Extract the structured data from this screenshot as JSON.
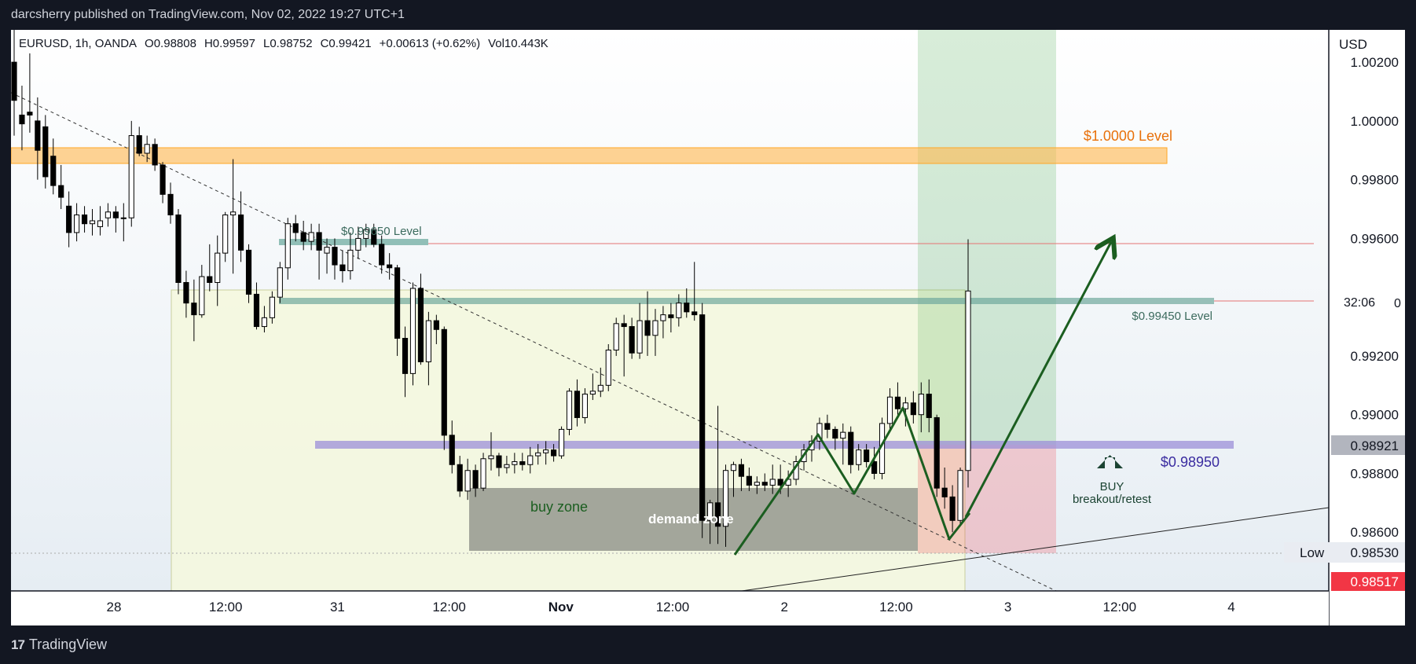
{
  "header": {
    "publisher": "darcsherry published on TradingView.com, Nov 02, 2022 19:27 UTC+1"
  },
  "footer": {
    "brand": "TradingView"
  },
  "legend": {
    "symbol": "EURUSD, 1h, OANDA",
    "open": "O0.98808",
    "high": "H0.99597",
    "low": "L0.98752",
    "close": "C0.99421",
    "change": "+0.00613 (+0.62%)",
    "volume": "Vol10.443K"
  },
  "price_axis": {
    "currency": "USD",
    "ticks": [
      "1.00200",
      "1.00000",
      "0.99800",
      "0.99600",
      "0.99200",
      "0.99000",
      "0.98800",
      "0.98600"
    ],
    "countdown": "32:06",
    "countdown_suffix": "0",
    "last_price": "0.98921",
    "low_label": "Low",
    "low_value": "0.98530",
    "current_price": "0.98517"
  },
  "time_axis": {
    "ticks": [
      "28",
      "12:00",
      "31",
      "12:00",
      "Nov",
      "12:00",
      "2",
      "12:00",
      "3",
      "12:00",
      "4"
    ]
  },
  "annotations": {
    "level_1": "$1.0000 Level",
    "level_2": "$0.99650 Level",
    "level_3": "$0.99450 Level",
    "level_4": "$0.98950",
    "buy_zone": "buy zone",
    "demand_zone": "demand zone",
    "buy_title": "BUY",
    "buy_sub": "breakout/retest"
  },
  "colors": {
    "up_body": "#ffffff",
    "down_body": "#000000",
    "wick": "#000000",
    "level_orange": "#ff9800",
    "level_teal": "#5b9c8f",
    "level_purple": "#9c8fd8",
    "profit_zone": "#4caf50",
    "stop_zone": "#f23645",
    "arrow_green": "#1b5e20",
    "current_price_tag": "#f23645"
  },
  "chart_data": {
    "type": "candlestick",
    "symbol": "EURUSD",
    "interval": "1h",
    "ylim": [
      0.984,
      1.0031
    ],
    "x_tick_labels": [
      "28",
      "12:00",
      "31",
      "12:00",
      "Nov",
      "12:00",
      "2",
      "12:00",
      "3",
      "12:00",
      "4"
    ],
    "candles": [
      {
        "o": 1.002,
        "h": 1.0032,
        "l": 0.9995,
        "c": 1.0007
      },
      {
        "o": 1.0002,
        "h": 1.0012,
        "l": 0.999,
        "c": 0.9999
      },
      {
        "o": 1.0003,
        "h": 1.0023,
        "l": 0.9996,
        "c": 1.0002
      },
      {
        "o": 1.0,
        "h": 1.0008,
        "l": 0.998,
        "c": 0.999
      },
      {
        "o": 0.9998,
        "h": 1.0002,
        "l": 0.9977,
        "c": 0.9981
      },
      {
        "o": 0.9988,
        "h": 0.9994,
        "l": 0.9975,
        "c": 0.9978
      },
      {
        "o": 0.9978,
        "h": 0.9985,
        "l": 0.997,
        "c": 0.9974
      },
      {
        "o": 0.9971,
        "h": 0.9976,
        "l": 0.9957,
        "c": 0.9962
      },
      {
        "o": 0.9962,
        "h": 0.9972,
        "l": 0.9959,
        "c": 0.9968
      },
      {
        "o": 0.9968,
        "h": 0.9971,
        "l": 0.9962,
        "c": 0.9965
      },
      {
        "o": 0.9965,
        "h": 0.997,
        "l": 0.9961,
        "c": 0.9966
      },
      {
        "o": 0.9964,
        "h": 0.9971,
        "l": 0.9961,
        "c": 0.9966
      },
      {
        "o": 0.9967,
        "h": 0.9972,
        "l": 0.9964,
        "c": 0.9969
      },
      {
        "o": 0.9969,
        "h": 0.9971,
        "l": 0.9962,
        "c": 0.9967
      },
      {
        "o": 0.9967,
        "h": 0.9972,
        "l": 0.9959,
        "c": 0.9967
      },
      {
        "o": 0.9967,
        "h": 1.0,
        "l": 0.9964,
        "c": 0.9995
      },
      {
        "o": 0.9995,
        "h": 0.9998,
        "l": 0.9988,
        "c": 0.9989
      },
      {
        "o": 0.9989,
        "h": 0.9995,
        "l": 0.9986,
        "c": 0.9992
      },
      {
        "o": 0.9992,
        "h": 0.9994,
        "l": 0.9983,
        "c": 0.9985
      },
      {
        "o": 0.9985,
        "h": 0.9986,
        "l": 0.9972,
        "c": 0.9975
      },
      {
        "o": 0.9975,
        "h": 0.9979,
        "l": 0.9965,
        "c": 0.9968
      },
      {
        "o": 0.9968,
        "h": 0.997,
        "l": 0.9941,
        "c": 0.9945
      },
      {
        "o": 0.9945,
        "h": 0.9949,
        "l": 0.9933,
        "c": 0.9938
      },
      {
        "o": 0.9938,
        "h": 0.9946,
        "l": 0.9925,
        "c": 0.9934
      },
      {
        "o": 0.9934,
        "h": 0.9951,
        "l": 0.9933,
        "c": 0.9947
      },
      {
        "o": 0.9947,
        "h": 0.9958,
        "l": 0.9942,
        "c": 0.9945
      },
      {
        "o": 0.9945,
        "h": 0.9961,
        "l": 0.9937,
        "c": 0.9955
      },
      {
        "o": 0.9955,
        "h": 0.9969,
        "l": 0.9952,
        "c": 0.9968
      },
      {
        "o": 0.9968,
        "h": 0.9987,
        "l": 0.9948,
        "c": 0.9969
      },
      {
        "o": 0.9968,
        "h": 0.9976,
        "l": 0.9952,
        "c": 0.9956
      },
      {
        "o": 0.9956,
        "h": 0.9958,
        "l": 0.9938,
        "c": 0.9941
      },
      {
        "o": 0.9941,
        "h": 0.9945,
        "l": 0.9929,
        "c": 0.993
      },
      {
        "o": 0.993,
        "h": 0.9937,
        "l": 0.9928,
        "c": 0.9933
      },
      {
        "o": 0.9933,
        "h": 0.9942,
        "l": 0.9931,
        "c": 0.994
      },
      {
        "o": 0.994,
        "h": 0.9952,
        "l": 0.9938,
        "c": 0.995
      },
      {
        "o": 0.995,
        "h": 0.9967,
        "l": 0.9946,
        "c": 0.9965
      },
      {
        "o": 0.9965,
        "h": 0.9968,
        "l": 0.9959,
        "c": 0.9962
      },
      {
        "o": 0.9962,
        "h": 0.9966,
        "l": 0.9956,
        "c": 0.9959
      },
      {
        "o": 0.9959,
        "h": 0.9965,
        "l": 0.9956,
        "c": 0.9962
      },
      {
        "o": 0.9962,
        "h": 0.9965,
        "l": 0.9946,
        "c": 0.9956
      },
      {
        "o": 0.9955,
        "h": 0.996,
        "l": 0.9948,
        "c": 0.9957
      },
      {
        "o": 0.9957,
        "h": 0.996,
        "l": 0.9946,
        "c": 0.9951
      },
      {
        "o": 0.9951,
        "h": 0.9956,
        "l": 0.9945,
        "c": 0.9949
      },
      {
        "o": 0.9949,
        "h": 0.9962,
        "l": 0.9946,
        "c": 0.9956
      },
      {
        "o": 0.9956,
        "h": 0.9964,
        "l": 0.9953,
        "c": 0.996
      },
      {
        "o": 0.996,
        "h": 0.9965,
        "l": 0.9957,
        "c": 0.9963
      },
      {
        "o": 0.9963,
        "h": 0.9965,
        "l": 0.9957,
        "c": 0.9958
      },
      {
        "o": 0.9958,
        "h": 0.9961,
        "l": 0.9948,
        "c": 0.9951
      },
      {
        "o": 0.9951,
        "h": 0.9955,
        "l": 0.9946,
        "c": 0.995
      },
      {
        "o": 0.995,
        "h": 0.9951,
        "l": 0.992,
        "c": 0.9926
      },
      {
        "o": 0.9926,
        "h": 0.993,
        "l": 0.9906,
        "c": 0.9914
      },
      {
        "o": 0.9914,
        "h": 0.9945,
        "l": 0.991,
        "c": 0.9943
      },
      {
        "o": 0.9943,
        "h": 0.9948,
        "l": 0.9917,
        "c": 0.9918
      },
      {
        "o": 0.9918,
        "h": 0.9935,
        "l": 0.991,
        "c": 0.9932
      },
      {
        "o": 0.9932,
        "h": 0.9934,
        "l": 0.9924,
        "c": 0.9929
      },
      {
        "o": 0.9929,
        "h": 0.993,
        "l": 0.9888,
        "c": 0.9893
      },
      {
        "o": 0.9893,
        "h": 0.9898,
        "l": 0.988,
        "c": 0.9883
      },
      {
        "o": 0.9883,
        "h": 0.9886,
        "l": 0.9872,
        "c": 0.9874
      },
      {
        "o": 0.9874,
        "h": 0.9885,
        "l": 0.9871,
        "c": 0.9881
      },
      {
        "o": 0.9881,
        "h": 0.9883,
        "l": 0.9872,
        "c": 0.9875
      },
      {
        "o": 0.9875,
        "h": 0.9887,
        "l": 0.9874,
        "c": 0.9885
      },
      {
        "o": 0.9885,
        "h": 0.9894,
        "l": 0.9881,
        "c": 0.9886
      },
      {
        "o": 0.9886,
        "h": 0.9887,
        "l": 0.9879,
        "c": 0.9882
      },
      {
        "o": 0.9882,
        "h": 0.9886,
        "l": 0.988,
        "c": 0.9883
      },
      {
        "o": 0.9883,
        "h": 0.9887,
        "l": 0.988,
        "c": 0.9884
      },
      {
        "o": 0.9884,
        "h": 0.9887,
        "l": 0.9881,
        "c": 0.9883
      },
      {
        "o": 0.9883,
        "h": 0.9889,
        "l": 0.988,
        "c": 0.9886
      },
      {
        "o": 0.9886,
        "h": 0.989,
        "l": 0.9883,
        "c": 0.9887
      },
      {
        "o": 0.9887,
        "h": 0.9891,
        "l": 0.9883,
        "c": 0.9888
      },
      {
        "o": 0.9888,
        "h": 0.989,
        "l": 0.9884,
        "c": 0.9886
      },
      {
        "o": 0.9886,
        "h": 0.9896,
        "l": 0.9885,
        "c": 0.9895
      },
      {
        "o": 0.9895,
        "h": 0.9909,
        "l": 0.9893,
        "c": 0.9908
      },
      {
        "o": 0.9908,
        "h": 0.9912,
        "l": 0.9896,
        "c": 0.9899
      },
      {
        "o": 0.9899,
        "h": 0.9909,
        "l": 0.9897,
        "c": 0.9907
      },
      {
        "o": 0.9907,
        "h": 0.9914,
        "l": 0.9905,
        "c": 0.9908
      },
      {
        "o": 0.9908,
        "h": 0.9916,
        "l": 0.9906,
        "c": 0.991
      },
      {
        "o": 0.991,
        "h": 0.9924,
        "l": 0.9908,
        "c": 0.9922
      },
      {
        "o": 0.9922,
        "h": 0.9933,
        "l": 0.992,
        "c": 0.9931
      },
      {
        "o": 0.9931,
        "h": 0.9934,
        "l": 0.9913,
        "c": 0.993
      },
      {
        "o": 0.993,
        "h": 0.9933,
        "l": 0.9919,
        "c": 0.9921
      },
      {
        "o": 0.9921,
        "h": 0.9938,
        "l": 0.9919,
        "c": 0.9932
      },
      {
        "o": 0.9932,
        "h": 0.9942,
        "l": 0.992,
        "c": 0.9927
      },
      {
        "o": 0.9927,
        "h": 0.9936,
        "l": 0.992,
        "c": 0.9932
      },
      {
        "o": 0.9932,
        "h": 0.9937,
        "l": 0.9926,
        "c": 0.9934
      },
      {
        "o": 0.9934,
        "h": 0.9938,
        "l": 0.9928,
        "c": 0.9933
      },
      {
        "o": 0.9933,
        "h": 0.9941,
        "l": 0.993,
        "c": 0.9938
      },
      {
        "o": 0.9938,
        "h": 0.9943,
        "l": 0.9933,
        "c": 0.9935
      },
      {
        "o": 0.9935,
        "h": 0.9952,
        "l": 0.9932,
        "c": 0.9934
      },
      {
        "o": 0.9934,
        "h": 0.9938,
        "l": 0.9858,
        "c": 0.9864
      },
      {
        "o": 0.9864,
        "h": 0.9871,
        "l": 0.9856,
        "c": 0.987
      },
      {
        "o": 0.987,
        "h": 0.9903,
        "l": 0.9856,
        "c": 0.9862
      },
      {
        "o": 0.9862,
        "h": 0.9883,
        "l": 0.9855,
        "c": 0.9881
      },
      {
        "o": 0.9881,
        "h": 0.9884,
        "l": 0.9872,
        "c": 0.9883
      },
      {
        "o": 0.9883,
        "h": 0.9885,
        "l": 0.9874,
        "c": 0.9879
      },
      {
        "o": 0.9879,
        "h": 0.9882,
        "l": 0.9874,
        "c": 0.9876
      },
      {
        "o": 0.9876,
        "h": 0.9879,
        "l": 0.9873,
        "c": 0.9877
      },
      {
        "o": 0.9877,
        "h": 0.988,
        "l": 0.9874,
        "c": 0.9876
      },
      {
        "o": 0.9876,
        "h": 0.9883,
        "l": 0.9873,
        "c": 0.9878
      },
      {
        "o": 0.9878,
        "h": 0.9883,
        "l": 0.9873,
        "c": 0.9876
      },
      {
        "o": 0.9876,
        "h": 0.9881,
        "l": 0.9872,
        "c": 0.9878
      },
      {
        "o": 0.9878,
        "h": 0.9886,
        "l": 0.9876,
        "c": 0.9884
      },
      {
        "o": 0.9884,
        "h": 0.989,
        "l": 0.9881,
        "c": 0.9888
      },
      {
        "o": 0.9888,
        "h": 0.9893,
        "l": 0.9884,
        "c": 0.9891
      },
      {
        "o": 0.9891,
        "h": 0.9899,
        "l": 0.9888,
        "c": 0.9897
      },
      {
        "o": 0.9897,
        "h": 0.99,
        "l": 0.9892,
        "c": 0.9895
      },
      {
        "o": 0.9895,
        "h": 0.9896,
        "l": 0.9888,
        "c": 0.9892
      },
      {
        "o": 0.9892,
        "h": 0.9897,
        "l": 0.9883,
        "c": 0.9894
      },
      {
        "o": 0.9894,
        "h": 0.9896,
        "l": 0.988,
        "c": 0.9883
      },
      {
        "o": 0.9883,
        "h": 0.989,
        "l": 0.9881,
        "c": 0.9888
      },
      {
        "o": 0.9888,
        "h": 0.989,
        "l": 0.9882,
        "c": 0.9884
      },
      {
        "o": 0.9884,
        "h": 0.9889,
        "l": 0.9878,
        "c": 0.988
      },
      {
        "o": 0.988,
        "h": 0.9899,
        "l": 0.9878,
        "c": 0.9897
      },
      {
        "o": 0.9897,
        "h": 0.9909,
        "l": 0.9895,
        "c": 0.9906
      },
      {
        "o": 0.9906,
        "h": 0.9911,
        "l": 0.99,
        "c": 0.9902
      },
      {
        "o": 0.9902,
        "h": 0.9906,
        "l": 0.9896,
        "c": 0.9904
      },
      {
        "o": 0.9904,
        "h": 0.9908,
        "l": 0.9897,
        "c": 0.99
      },
      {
        "o": 0.99,
        "h": 0.9911,
        "l": 0.9894,
        "c": 0.9907
      },
      {
        "o": 0.9907,
        "h": 0.9912,
        "l": 0.9894,
        "c": 0.9899
      },
      {
        "o": 0.9899,
        "h": 0.99,
        "l": 0.9872,
        "c": 0.9875
      },
      {
        "o": 0.9875,
        "h": 0.9882,
        "l": 0.9868,
        "c": 0.9872
      },
      {
        "o": 0.9872,
        "h": 0.9876,
        "l": 0.986,
        "c": 0.9864
      },
      {
        "o": 0.9864,
        "h": 0.9882,
        "l": 0.9862,
        "c": 0.9881
      },
      {
        "o": 0.9881,
        "h": 0.99597,
        "l": 0.98752,
        "c": 0.99421
      }
    ]
  }
}
